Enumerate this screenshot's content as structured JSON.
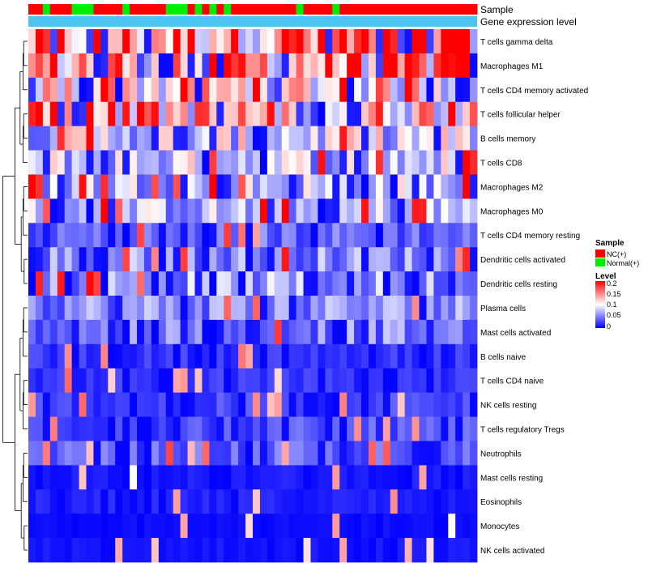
{
  "chart_data": {
    "type": "heatmap",
    "title": "",
    "annotation_tracks": [
      "Sample",
      "Gene expression level"
    ],
    "sample_groups": {
      "palette": {
        "NC(+)": "#FF0000",
        "Normal(+)": "#00EE00"
      },
      "sequence": [
        "NC(+)",
        "NC(+)",
        "Normal(+)",
        "NC(+)",
        "NC(+)",
        "NC(+)",
        "Normal(+)",
        "Normal(+)",
        "Normal(+)",
        "NC(+)",
        "NC(+)",
        "NC(+)",
        "NC(+)",
        "Normal(+)",
        "NC(+)",
        "NC(+)",
        "NC(+)",
        "NC(+)",
        "NC(+)",
        "Normal(+)",
        "Normal(+)",
        "Normal(+)",
        "NC(+)",
        "Normal(+)",
        "NC(+)",
        "Normal(+)",
        "NC(+)",
        "Normal(+)",
        "NC(+)",
        "NC(+)",
        "NC(+)",
        "NC(+)",
        "NC(+)",
        "NC(+)",
        "NC(+)",
        "NC(+)",
        "NC(+)",
        "Normal(+)",
        "NC(+)",
        "NC(+)",
        "NC(+)",
        "NC(+)",
        "Normal(+)",
        "NC(+)",
        "NC(+)",
        "NC(+)",
        "NC(+)",
        "NC(+)",
        "NC(+)",
        "NC(+)",
        "NC(+)",
        "NC(+)",
        "NC(+)",
        "NC(+)",
        "NC(+)",
        "NC(+)",
        "NC(+)",
        "NC(+)",
        "NC(+)",
        "NC(+)",
        "NC(+)",
        "NC(+)"
      ]
    },
    "gene_expression_color": "#4DC3F0",
    "rows": [
      "T cells gamma delta",
      "Macrophages M1",
      "T cells CD4 memory activated",
      "T cells follicular helper",
      "B cells memory",
      "T cells CD8",
      "Macrophages M2",
      "Macrophages M0",
      "T cells CD4 memory resting",
      "Dendritic cells activated",
      "Dendritic cells resting",
      "Plasma cells",
      "Mast cells activated",
      "B cells naive",
      "T cells CD4 naive",
      "NK cells resting",
      "T cells regulatory  Tregs",
      "Neutrophils",
      "Mast cells resting",
      "Eosinophils",
      "Monocytes",
      "NK cells activated"
    ],
    "row_means": [
      0.15,
      0.14,
      0.11,
      0.125,
      0.085,
      0.08,
      0.075,
      0.07,
      0.04,
      0.055,
      0.06,
      0.055,
      0.05,
      0.02,
      0.02,
      0.025,
      0.03,
      0.035,
      0.01,
      0.012,
      0.005,
      0.008
    ],
    "n_columns": 62,
    "value_range": [
      0,
      0.2
    ],
    "legend": {
      "sample_title": "Sample",
      "sample_entries": [
        {
          "label": "NC(+)",
          "color": "#FF0000"
        },
        {
          "label": "Normal(+)",
          "color": "#00EE00"
        }
      ],
      "level_title": "Level",
      "level_ticks": [
        "0.2",
        "0.15",
        "0.1",
        "0.05",
        "0"
      ],
      "gradient": [
        "#FF0000",
        "#FFFFFF",
        "#0000FF"
      ],
      "placement": "right"
    }
  }
}
